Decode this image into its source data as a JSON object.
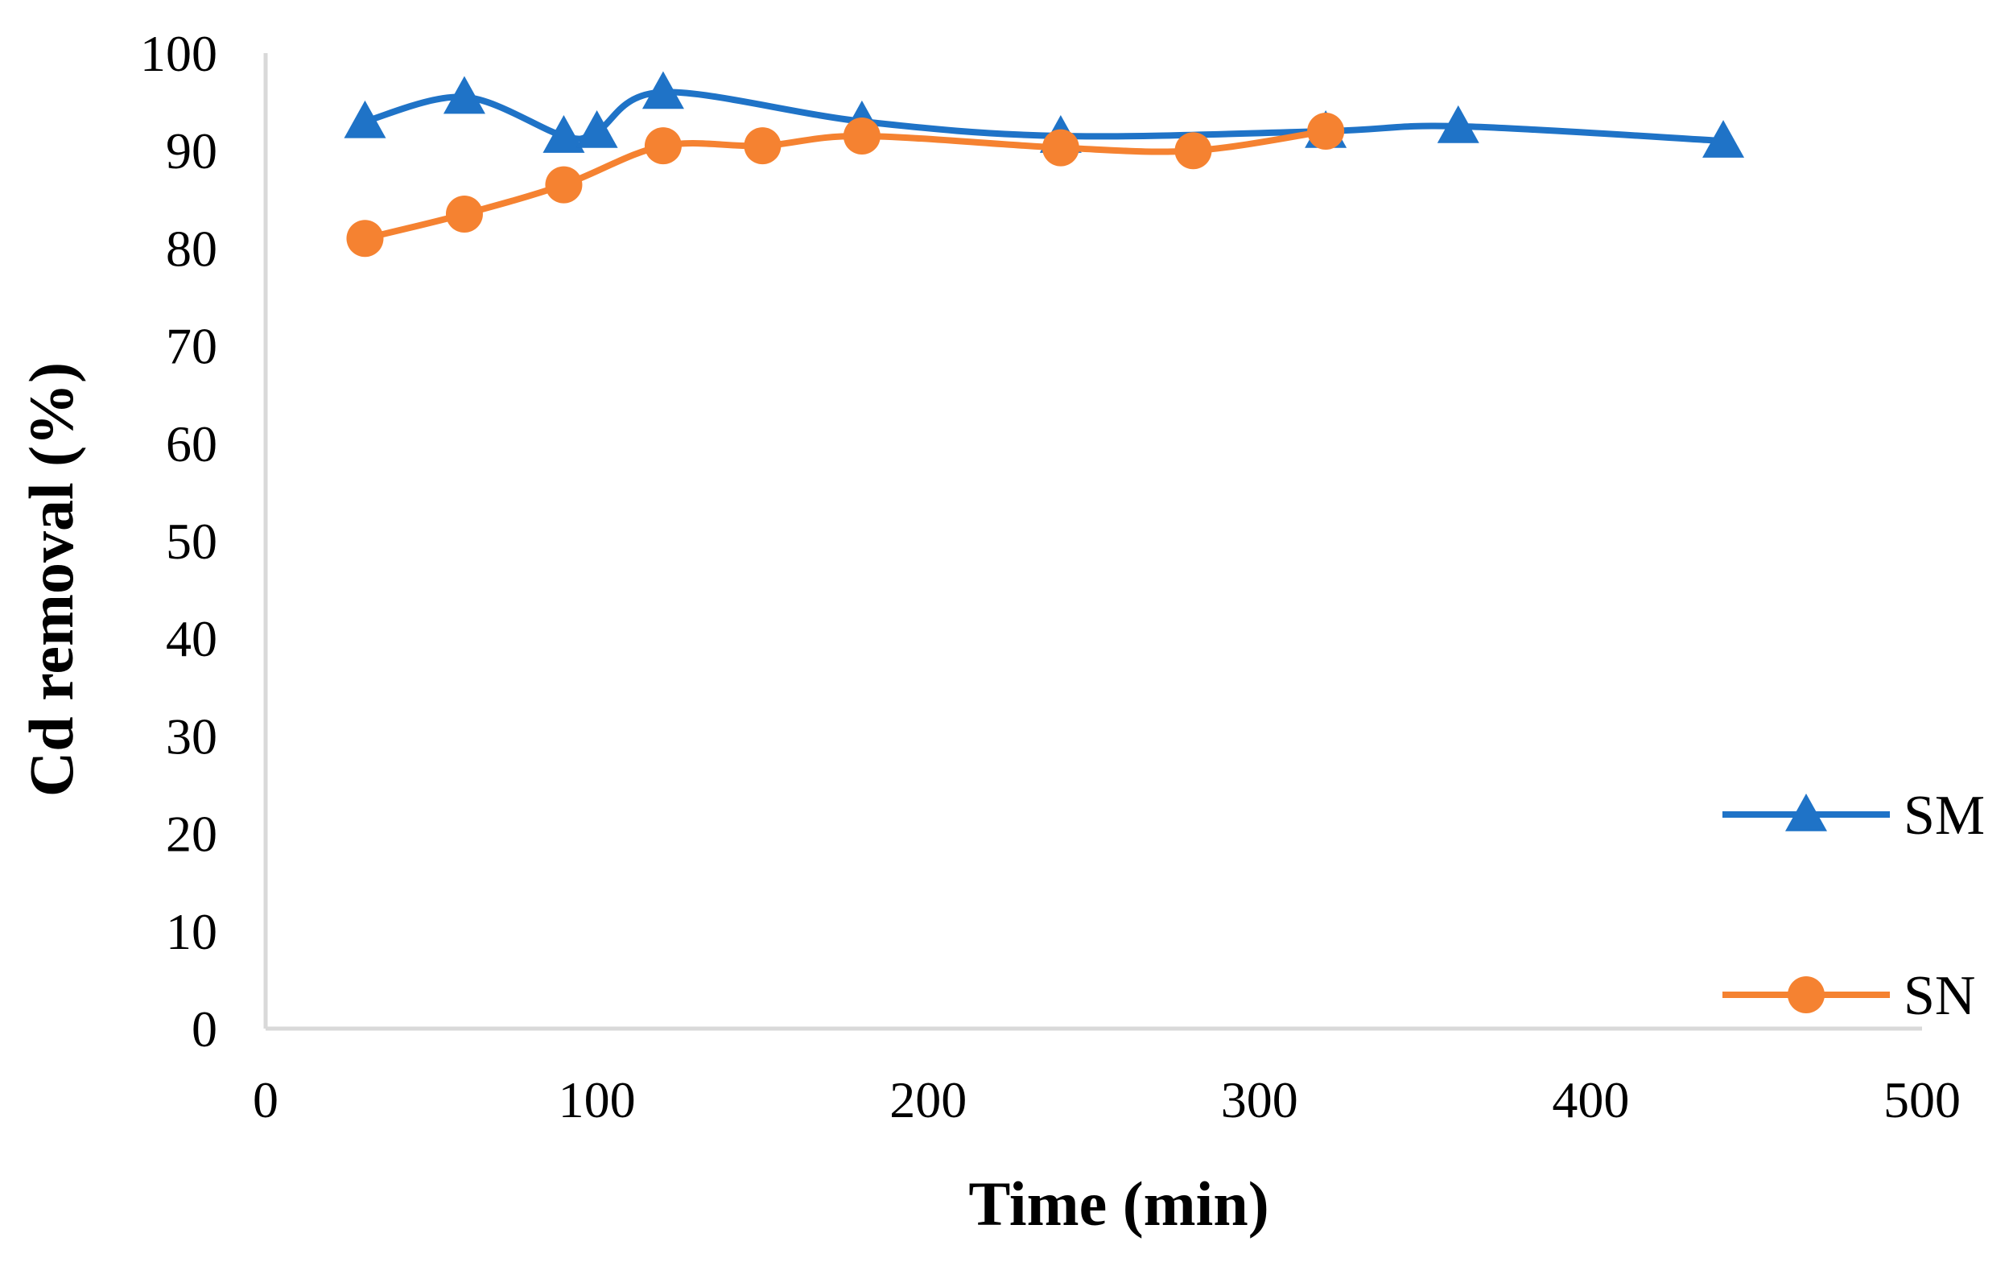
{
  "chart_data": {
    "type": "line",
    "title": "",
    "xlabel": "Time  (min)",
    "ylabel": "Cd removal  (%)",
    "xlim": [
      0,
      500
    ],
    "ylim": [
      0,
      100
    ],
    "xticks": [
      0,
      100,
      200,
      300,
      400,
      500
    ],
    "yticks": [
      0,
      10,
      20,
      30,
      40,
      50,
      60,
      70,
      80,
      90,
      100
    ],
    "grid": false,
    "legend_position": "right",
    "series": [
      {
        "name": "SM",
        "marker": "triangle",
        "color": "#1f73c7",
        "x": [
          30,
          60,
          90,
          100,
          120,
          180,
          240,
          320,
          360,
          440
        ],
        "y": [
          93,
          95.5,
          91.5,
          92,
          96,
          93,
          91.5,
          92,
          92.5,
          91
        ]
      },
      {
        "name": "SN",
        "marker": "circle",
        "color": "#f58231",
        "x": [
          30,
          60,
          90,
          120,
          150,
          180,
          240,
          280,
          320
        ],
        "y": [
          81,
          83.5,
          86.5,
          90.5,
          90.5,
          91.5,
          90.3,
          90,
          92
        ]
      }
    ]
  }
}
